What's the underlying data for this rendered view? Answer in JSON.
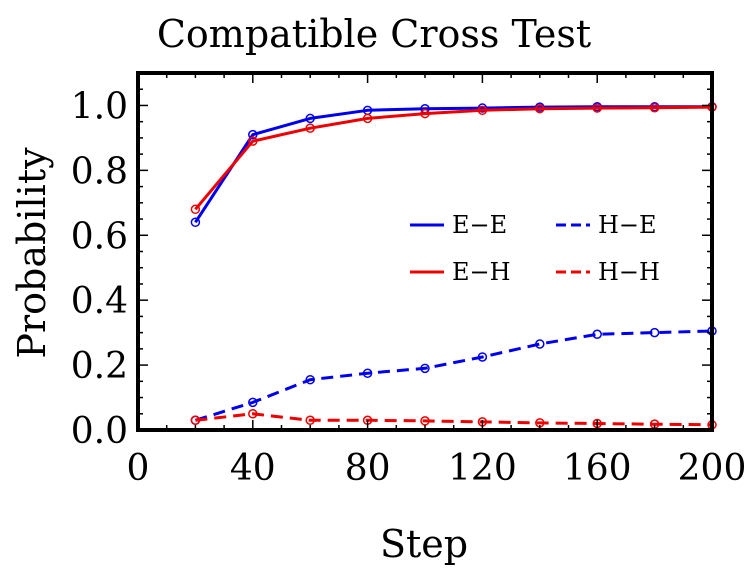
{
  "chart_data": {
    "type": "line",
    "title": "Compatible Cross Test",
    "xlabel": "Step",
    "ylabel": "Probability",
    "xlim": [
      0,
      200
    ],
    "ylim": [
      0,
      1.1
    ],
    "xticks": [
      0,
      40,
      80,
      120,
      160,
      200
    ],
    "xtick_labels": [
      "0",
      "40",
      "80",
      "120",
      "160",
      "200"
    ],
    "yticks": [
      0.0,
      0.2,
      0.4,
      0.6,
      0.8,
      1.0
    ],
    "ytick_labels": [
      "0.0",
      "0.2",
      "0.4",
      "0.6",
      "0.8",
      "1.0"
    ],
    "grid": false,
    "legend_position": "center-right",
    "x": [
      20,
      40,
      60,
      80,
      100,
      120,
      140,
      160,
      180,
      200
    ],
    "series": [
      {
        "name": "E−E",
        "color": "#0000ee",
        "dash": "solid",
        "values": [
          0.64,
          0.91,
          0.96,
          0.985,
          0.99,
          0.992,
          0.995,
          0.996,
          0.996,
          0.996
        ]
      },
      {
        "name": "E−H",
        "color": "#ee0000",
        "dash": "solid",
        "values": [
          0.68,
          0.89,
          0.93,
          0.96,
          0.975,
          0.985,
          0.99,
          0.992,
          0.993,
          0.995
        ]
      },
      {
        "name": "H−E",
        "color": "#0000ee",
        "dash": "dashed",
        "values": [
          0.03,
          0.085,
          0.155,
          0.175,
          0.19,
          0.225,
          0.265,
          0.295,
          0.3,
          0.305
        ]
      },
      {
        "name": "H−H",
        "color": "#ee0000",
        "dash": "dashed",
        "values": [
          0.03,
          0.05,
          0.03,
          0.03,
          0.028,
          0.025,
          0.022,
          0.02,
          0.018,
          0.016
        ]
      }
    ]
  }
}
